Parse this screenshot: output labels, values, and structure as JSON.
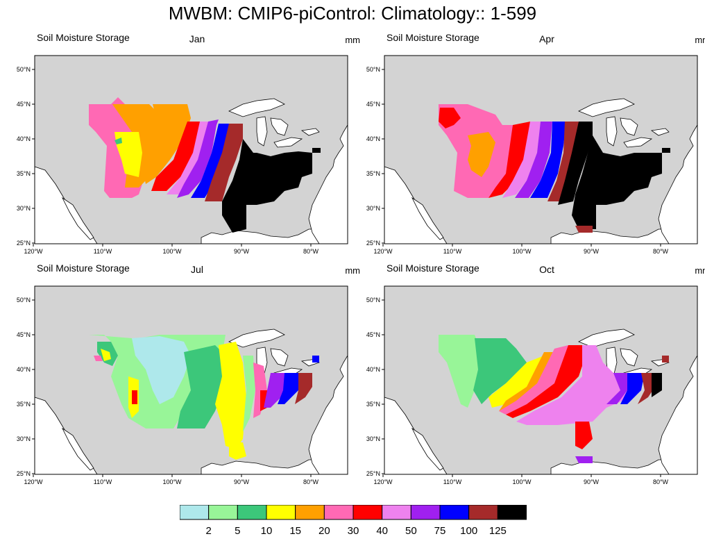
{
  "title": "MWBM: CMIP6-piControl: Climatology:: 1-599",
  "variable_label": "Soil Moisture Storage",
  "units": "mm",
  "panels": [
    {
      "month": "Jan"
    },
    {
      "month": "Apr"
    },
    {
      "month": "Jul"
    },
    {
      "month": "Oct"
    }
  ],
  "lon_ticks": [
    "120°W",
    "110°W",
    "100°W",
    "90°W",
    "80°W"
  ],
  "lat_ticks": [
    "50°N",
    "45°N",
    "40°N",
    "35°N",
    "30°N",
    "25°N"
  ],
  "colorbar": {
    "levels": [
      "2",
      "5",
      "10",
      "15",
      "20",
      "30",
      "40",
      "50",
      "75",
      "100",
      "125"
    ],
    "colors": [
      "#aee8eb",
      "#98f598",
      "#3cc77a",
      "#ffff00",
      "#ffa000",
      "#ff69b4",
      "#ff0000",
      "#ee82ee",
      "#a020f0",
      "#0000ff",
      "#a52a2a",
      "#000000"
    ]
  },
  "map_colors": {
    "land": "#d3d3d3",
    "water": "#ffffff"
  }
}
